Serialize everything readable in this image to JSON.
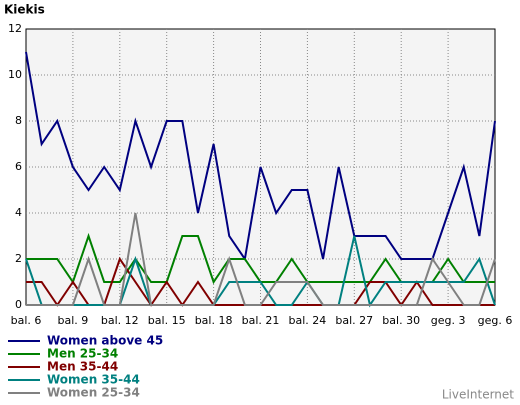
{
  "chart_data": {
    "type": "line",
    "title": "Kiekis",
    "source": "LiveInternet",
    "categories": [
      "bal. 6",
      null,
      null,
      "bal. 9",
      null,
      null,
      "bal. 12",
      null,
      null,
      "bal. 15",
      null,
      null,
      "bal. 18",
      null,
      null,
      "bal. 21",
      null,
      null,
      "bal. 24",
      null,
      null,
      "bal. 27",
      null,
      null,
      "bal. 30",
      null,
      null,
      "geg. 3",
      null,
      null,
      "geg. 6"
    ],
    "series": [
      {
        "name": "Women above 45",
        "color": "#000080",
        "values": [
          11,
          7,
          8,
          6,
          5,
          6,
          5,
          8,
          6,
          8,
          8,
          4,
          7,
          3,
          2,
          6,
          4,
          5,
          5,
          2,
          6,
          3,
          3,
          3,
          2,
          2,
          2,
          4,
          6,
          3,
          8
        ]
      },
      {
        "name": "Men 25-34",
        "color": "#008000",
        "values": [
          2,
          2,
          2,
          1,
          3,
          1,
          1,
          2,
          1,
          1,
          3,
          3,
          1,
          2,
          2,
          1,
          1,
          2,
          1,
          1,
          1,
          1,
          1,
          2,
          1,
          1,
          1,
          2,
          1,
          1,
          1
        ]
      },
      {
        "name": "Men 35-44",
        "color": "#800000",
        "values": [
          1,
          1,
          0,
          1,
          0,
          0,
          2,
          1,
          0,
          1,
          0,
          1,
          0,
          0,
          0,
          0,
          0,
          0,
          0,
          0,
          0,
          0,
          1,
          1,
          0,
          1,
          0,
          0,
          0,
          0,
          0
        ]
      },
      {
        "name": "Women 35-44",
        "color": "#008080",
        "values": [
          2,
          0,
          0,
          0,
          0,
          0,
          0,
          2,
          0,
          0,
          0,
          0,
          0,
          1,
          1,
          1,
          0,
          0,
          1,
          0,
          0,
          3,
          0,
          1,
          1,
          1,
          1,
          1,
          1,
          2,
          0
        ]
      },
      {
        "name": "Women 25-34",
        "color": "#808080",
        "values": [
          0,
          0,
          0,
          0,
          2,
          0,
          0,
          4,
          0,
          0,
          0,
          0,
          0,
          2,
          0,
          0,
          1,
          1,
          1,
          0,
          0,
          0,
          0,
          0,
          0,
          0,
          2,
          1,
          0,
          0,
          2
        ]
      }
    ],
    "ylim": [
      0,
      12
    ],
    "yticks": [
      0,
      2,
      4,
      6,
      8,
      10,
      12
    ],
    "grid": true
  }
}
